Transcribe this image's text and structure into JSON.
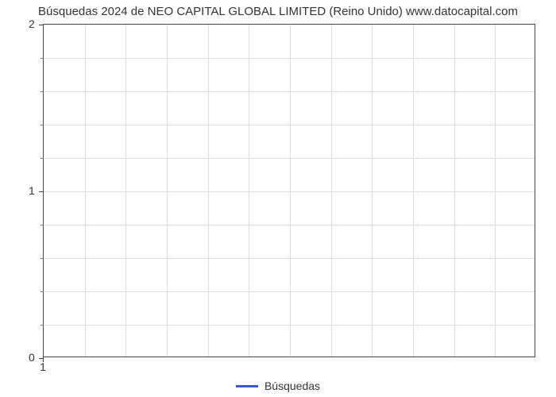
{
  "chart": {
    "type": "line",
    "title": "Búsquedas 2024 de NEO CAPITAL GLOBAL LIMITED (Reino Unido) www.datocapital.com",
    "title_fontsize": 15,
    "title_color": "#333333",
    "background_color": "#ffffff",
    "plot_border_color": "#444444",
    "grid_color": "#dddddd",
    "y_axis": {
      "lim": [
        0,
        2
      ],
      "major_ticks": [
        0,
        1,
        2
      ],
      "minor_tick_count_between": 4,
      "tick_label_fontsize": 14,
      "tick_color": "#333333"
    },
    "x_axis": {
      "lim": [
        1,
        12
      ],
      "major_ticks": [
        1
      ],
      "vertical_gridlines": 11,
      "tick_label_fontsize": 14,
      "tick_color": "#333333"
    },
    "series": [
      {
        "name": "Búsquedas",
        "color": "#3d57d4",
        "line_width": 3,
        "data": []
      }
    ],
    "legend": {
      "position": "bottom-center",
      "label": "Búsquedas",
      "color": "#3d57d4",
      "fontsize": 14
    }
  }
}
